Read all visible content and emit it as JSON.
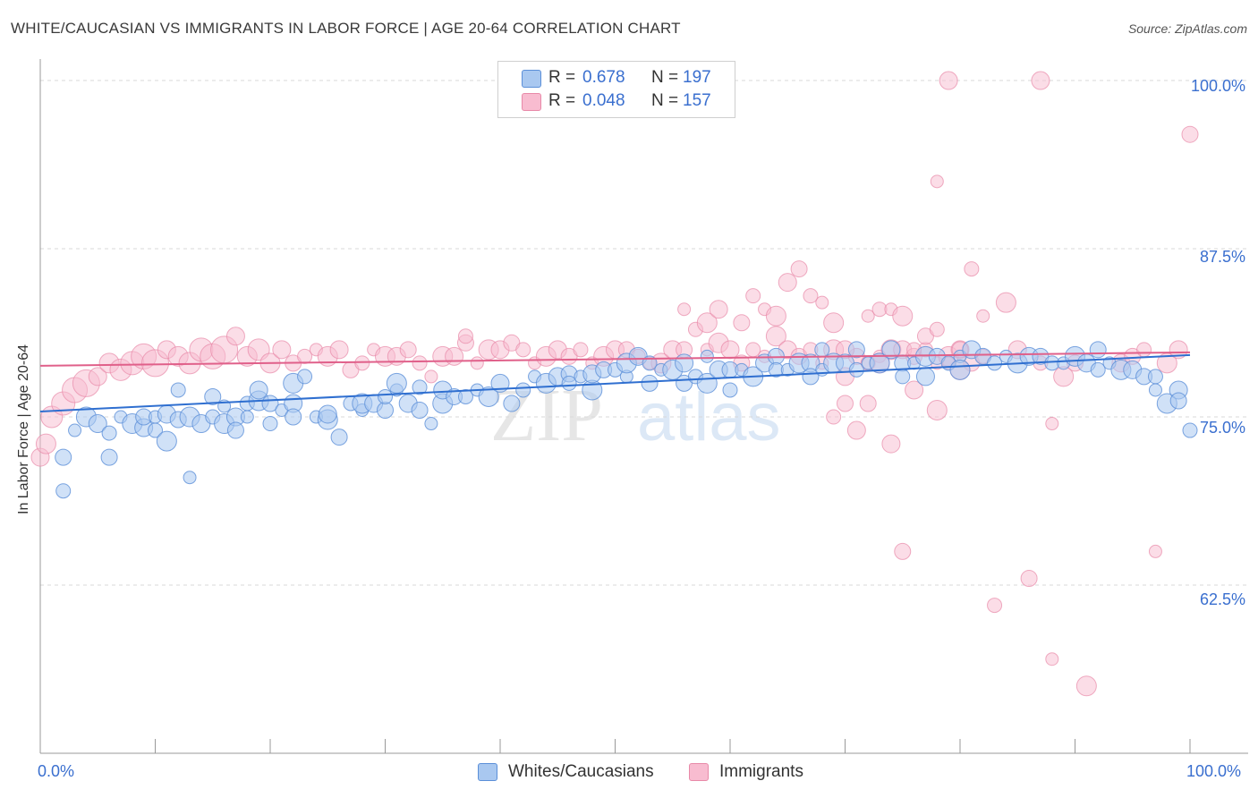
{
  "title": "WHITE/CAUCASIAN VS IMMIGRANTS IN LABOR FORCE | AGE 20-64 CORRELATION CHART",
  "source": "Source: ZipAtlas.com",
  "watermark": {
    "part1": "ZIP",
    "part2": "atlas"
  },
  "legend": {
    "rows": [
      {
        "r_label": "R =",
        "r_value": "0.678",
        "n_label": "N =",
        "n_value": "197",
        "color": "#a9c8f0"
      },
      {
        "r_label": "R =",
        "r_value": "0.048",
        "n_label": "N =",
        "n_value": "157",
        "color": "#f8bcd0"
      }
    ]
  },
  "bottom_legend": [
    {
      "label": "Whites/Caucasians",
      "color": "#a9c8f0"
    },
    {
      "label": "Immigrants",
      "color": "#f8bcd0"
    }
  ],
  "colors": {
    "blue_fill": "#a9c8f0",
    "blue_stroke": "#5b8fd8",
    "blue_line": "#2f6fd0",
    "pink_fill": "#f8bcd0",
    "pink_stroke": "#e889a8",
    "pink_line": "#e0608a",
    "grid": "#d9d9d9",
    "tick_text": "#3a6fcf"
  },
  "chart_data": {
    "type": "scatter",
    "title": "WHITE/CAUCASIAN VS IMMIGRANTS IN LABOR FORCE | AGE 20-64 CORRELATION CHART",
    "xlabel": "",
    "ylabel": "In Labor Force | Age 20-64",
    "xlim": [
      0,
      100
    ],
    "ylim": [
      50,
      101
    ],
    "x_tick_labels": [
      "0.0%",
      "100.0%"
    ],
    "y_ticks": [
      62.5,
      75.0,
      87.5,
      100.0
    ],
    "y_tick_labels": [
      "62.5%",
      "75.0%",
      "87.5%",
      "100.0%"
    ],
    "grid": true,
    "series": [
      {
        "name": "Whites/Caucasians",
        "R": 0.678,
        "N": 197,
        "trend": {
          "x": [
            0,
            100
          ],
          "y": [
            75.4,
            79.6
          ]
        },
        "points": [
          [
            2,
            72
          ],
          [
            2,
            69.5
          ],
          [
            3,
            74
          ],
          [
            4,
            75
          ],
          [
            5,
            74.5
          ],
          [
            6,
            72
          ],
          [
            6,
            73.8
          ],
          [
            7,
            75
          ],
          [
            8,
            74.5
          ],
          [
            9,
            74.2
          ],
          [
            9,
            75
          ],
          [
            10,
            74
          ],
          [
            10,
            75
          ],
          [
            11,
            73.2
          ],
          [
            11,
            75.2
          ],
          [
            12,
            74.8
          ],
          [
            12,
            77
          ],
          [
            13,
            70.5
          ],
          [
            13,
            75
          ],
          [
            14,
            74.5
          ],
          [
            15,
            76.5
          ],
          [
            15,
            75
          ],
          [
            16,
            75.8
          ],
          [
            16,
            74.5
          ],
          [
            17,
            75
          ],
          [
            17,
            74
          ],
          [
            18,
            76
          ],
          [
            18,
            75
          ],
          [
            19,
            76.2
          ],
          [
            19,
            77
          ],
          [
            20,
            76
          ],
          [
            20,
            74.5
          ],
          [
            21,
            75.5
          ],
          [
            22,
            77.5
          ],
          [
            22,
            76
          ],
          [
            22,
            75
          ],
          [
            23,
            78
          ],
          [
            24,
            75
          ],
          [
            25,
            74.8
          ],
          [
            25,
            75.2
          ],
          [
            26,
            73.5
          ],
          [
            27,
            76
          ],
          [
            28,
            75.5
          ],
          [
            28,
            76
          ],
          [
            29,
            76
          ],
          [
            30,
            75.5
          ],
          [
            30,
            76.5
          ],
          [
            31,
            77
          ],
          [
            31,
            77.5
          ],
          [
            32,
            76
          ],
          [
            33,
            75.5
          ],
          [
            33,
            77.2
          ],
          [
            34,
            74.5
          ],
          [
            35,
            76
          ],
          [
            35,
            77
          ],
          [
            36,
            76.5
          ],
          [
            37,
            76.5
          ],
          [
            38,
            77
          ],
          [
            39,
            76.5
          ],
          [
            40,
            77.5
          ],
          [
            41,
            76
          ],
          [
            42,
            77
          ],
          [
            43,
            78
          ],
          [
            44,
            77.5
          ],
          [
            45,
            78
          ],
          [
            46,
            78.2
          ],
          [
            46,
            77.5
          ],
          [
            47,
            78
          ],
          [
            48,
            77
          ],
          [
            48,
            78.2
          ],
          [
            49,
            78.5
          ],
          [
            50,
            78.5
          ],
          [
            51,
            78
          ],
          [
            51,
            79
          ],
          [
            52,
            79.5
          ],
          [
            53,
            77.5
          ],
          [
            53,
            79
          ],
          [
            54,
            78.5
          ],
          [
            55,
            78.5
          ],
          [
            56,
            79
          ],
          [
            56,
            77.5
          ],
          [
            57,
            78
          ],
          [
            58,
            79.5
          ],
          [
            58,
            77.5
          ],
          [
            59,
            78.5
          ],
          [
            60,
            78.5
          ],
          [
            60,
            77
          ],
          [
            61,
            78.5
          ],
          [
            62,
            78
          ],
          [
            63,
            79
          ],
          [
            64,
            79.5
          ],
          [
            64,
            78.5
          ],
          [
            65,
            78.5
          ],
          [
            66,
            79
          ],
          [
            67,
            79
          ],
          [
            67,
            78
          ],
          [
            68,
            80
          ],
          [
            68,
            78.5
          ],
          [
            69,
            79
          ],
          [
            70,
            79
          ],
          [
            71,
            80
          ],
          [
            71,
            78.5
          ],
          [
            72,
            79
          ],
          [
            73,
            79
          ],
          [
            74,
            80
          ],
          [
            75,
            79
          ],
          [
            75,
            78
          ],
          [
            76,
            79
          ],
          [
            77,
            79.5
          ],
          [
            77,
            78
          ],
          [
            78,
            79.5
          ],
          [
            79,
            79
          ],
          [
            80,
            79.5
          ],
          [
            80,
            78.5
          ],
          [
            81,
            80
          ],
          [
            82,
            79.5
          ],
          [
            83,
            79
          ],
          [
            84,
            79.5
          ],
          [
            85,
            79
          ],
          [
            86,
            79.5
          ],
          [
            87,
            79.5
          ],
          [
            88,
            79
          ],
          [
            89,
            79
          ],
          [
            90,
            79.5
          ],
          [
            91,
            79
          ],
          [
            92,
            80
          ],
          [
            92,
            78.5
          ],
          [
            93,
            79
          ],
          [
            94,
            78.5
          ],
          [
            95,
            78.5
          ],
          [
            96,
            78
          ],
          [
            97,
            78
          ],
          [
            97,
            77
          ],
          [
            98,
            76
          ],
          [
            99,
            77
          ],
          [
            99,
            76.2
          ],
          [
            100,
            74
          ]
        ]
      },
      {
        "name": "Immigrants",
        "R": 0.048,
        "N": 157,
        "trend": {
          "x": [
            0,
            100
          ],
          "y": [
            78.8,
            79.8
          ]
        },
        "points": [
          [
            0,
            72
          ],
          [
            0.5,
            73
          ],
          [
            1,
            75
          ],
          [
            2,
            76
          ],
          [
            3,
            77
          ],
          [
            4,
            77.5
          ],
          [
            5,
            78
          ],
          [
            6,
            79
          ],
          [
            7,
            78.5
          ],
          [
            8,
            79
          ],
          [
            9,
            79.5
          ],
          [
            10,
            79
          ],
          [
            11,
            80
          ],
          [
            12,
            79.5
          ],
          [
            13,
            79
          ],
          [
            14,
            80
          ],
          [
            15,
            79.5
          ],
          [
            16,
            80
          ],
          [
            17,
            81
          ],
          [
            18,
            79.5
          ],
          [
            19,
            80
          ],
          [
            20,
            79
          ],
          [
            21,
            80
          ],
          [
            22,
            79
          ],
          [
            23,
            79.5
          ],
          [
            24,
            80
          ],
          [
            25,
            79.5
          ],
          [
            26,
            80
          ],
          [
            27,
            78.5
          ],
          [
            28,
            79
          ],
          [
            29,
            80
          ],
          [
            30,
            79.5
          ],
          [
            31,
            79.5
          ],
          [
            32,
            80
          ],
          [
            33,
            79
          ],
          [
            34,
            78
          ],
          [
            35,
            79.5
          ],
          [
            36,
            79.5
          ],
          [
            37,
            80.5
          ],
          [
            37,
            81
          ],
          [
            38,
            79
          ],
          [
            39,
            80
          ],
          [
            40,
            80
          ],
          [
            41,
            80.5
          ],
          [
            42,
            80
          ],
          [
            43,
            79
          ],
          [
            44,
            79.5
          ],
          [
            45,
            80
          ],
          [
            46,
            79.5
          ],
          [
            47,
            80
          ],
          [
            48,
            79
          ],
          [
            49,
            79.5
          ],
          [
            50,
            80
          ],
          [
            51,
            80
          ],
          [
            52,
            79.5
          ],
          [
            53,
            79
          ],
          [
            54,
            79
          ],
          [
            55,
            80
          ],
          [
            56,
            80
          ],
          [
            57,
            81.5
          ],
          [
            58,
            80
          ],
          [
            59,
            80.5
          ],
          [
            60,
            80
          ],
          [
            61,
            79
          ],
          [
            62,
            80
          ],
          [
            63,
            79.5
          ],
          [
            64,
            81
          ],
          [
            65,
            80
          ],
          [
            66,
            79.5
          ],
          [
            67,
            80
          ],
          [
            68,
            79
          ],
          [
            69,
            80
          ],
          [
            70,
            78
          ],
          [
            71,
            79.5
          ],
          [
            72,
            79
          ],
          [
            73,
            79.5
          ],
          [
            74,
            80
          ],
          [
            75,
            80
          ],
          [
            76,
            79.5
          ],
          [
            77,
            80
          ],
          [
            78,
            79
          ],
          [
            79,
            79.5
          ],
          [
            80,
            80
          ],
          [
            81,
            79
          ],
          [
            82,
            79.5
          ],
          [
            56,
            83
          ],
          [
            58,
            82
          ],
          [
            59,
            83
          ],
          [
            61,
            82
          ],
          [
            62,
            84
          ],
          [
            63,
            83
          ],
          [
            64,
            82.5
          ],
          [
            65,
            85
          ],
          [
            66,
            86
          ],
          [
            67,
            84
          ],
          [
            68,
            83.5
          ],
          [
            69,
            82
          ],
          [
            70,
            80
          ],
          [
            72,
            76
          ],
          [
            73,
            83
          ],
          [
            74,
            83
          ],
          [
            75,
            82.5
          ],
          [
            76,
            77
          ],
          [
            77,
            81
          ],
          [
            78,
            81.5
          ],
          [
            79,
            79
          ],
          [
            80,
            78.5
          ],
          [
            71,
            74
          ],
          [
            70,
            76
          ],
          [
            69,
            75
          ],
          [
            72,
            82.5
          ],
          [
            73,
            79
          ],
          [
            74,
            73
          ],
          [
            75,
            65
          ],
          [
            76,
            80
          ],
          [
            78,
            92.5
          ],
          [
            78,
            75.5
          ],
          [
            79,
            100
          ],
          [
            80,
            80
          ],
          [
            81,
            86
          ],
          [
            82,
            82.5
          ],
          [
            84,
            83.5
          ],
          [
            85,
            80
          ],
          [
            86,
            63
          ],
          [
            87,
            79
          ],
          [
            88,
            74.5
          ],
          [
            89,
            78
          ],
          [
            94,
            79
          ],
          [
            95,
            79.5
          ],
          [
            96,
            80
          ],
          [
            97,
            65
          ],
          [
            98,
            79
          ],
          [
            99,
            80
          ],
          [
            100,
            96
          ],
          [
            83,
            61
          ],
          [
            88,
            57
          ],
          [
            91,
            55
          ],
          [
            87,
            100
          ],
          [
            90,
            79
          ]
        ]
      }
    ]
  }
}
